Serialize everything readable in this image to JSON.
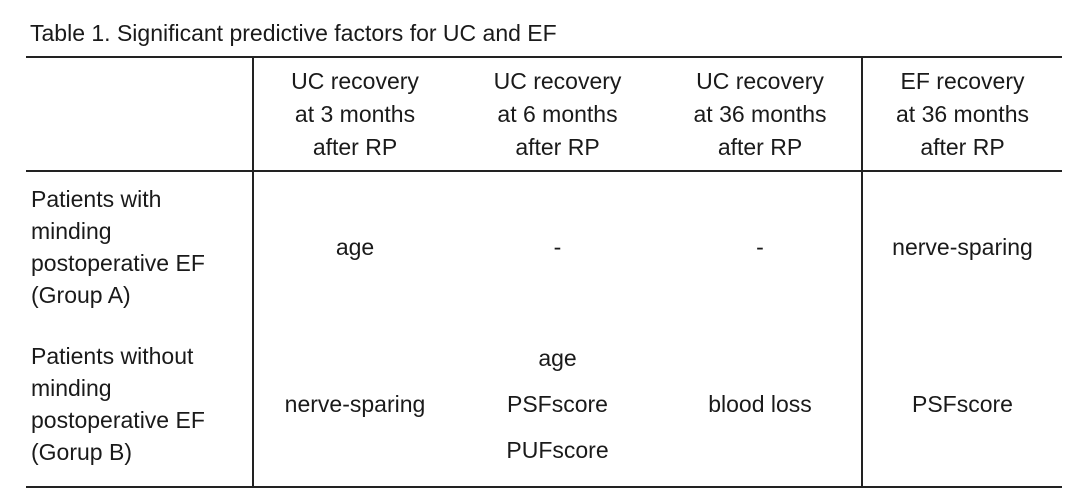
{
  "caption": "Table 1. Significant predictive factors for UC and EF",
  "columns": [
    [
      "UC recovery",
      "at 3 months",
      "after RP"
    ],
    [
      "UC recovery",
      "at 6 months",
      "after RP"
    ],
    [
      "UC recovery",
      "at 36 months",
      "after RP"
    ],
    [
      "EF recovery",
      "at 36 months",
      "after RP"
    ]
  ],
  "rows": [
    {
      "label_lines": [
        "Patients with",
        "minding",
        "postoperative EF",
        "(Group A)"
      ],
      "cells": [
        [
          "age"
        ],
        [
          "-"
        ],
        [
          "-"
        ],
        [
          "nerve-sparing"
        ]
      ]
    },
    {
      "label_lines": [
        "Patients without",
        "minding",
        "postoperative EF",
        "(Gorup B)"
      ],
      "cells": [
        [
          "nerve-sparing"
        ],
        [
          "age",
          "PSFscore",
          "PUFscore"
        ],
        [
          "blood loss"
        ],
        [
          "PSFscore"
        ]
      ]
    }
  ]
}
